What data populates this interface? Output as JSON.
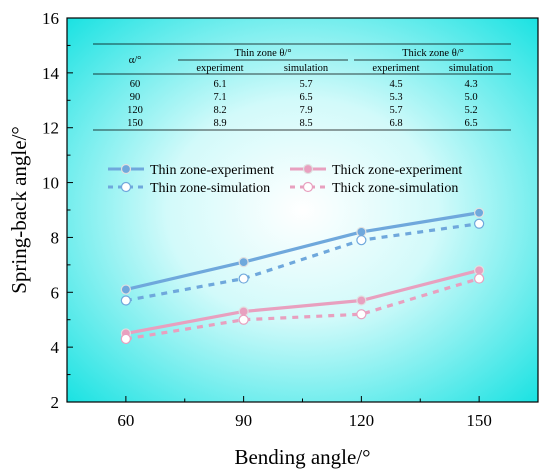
{
  "chart_data": {
    "type": "line",
    "xlabel": "Bending angle/°",
    "ylabel": "Spring-back angle/°",
    "x": [
      60,
      90,
      120,
      150
    ],
    "xticks": [
      "60",
      "90",
      "120",
      "150"
    ],
    "yticks": [
      "2",
      "4",
      "6",
      "8",
      "10",
      "12",
      "14",
      "16"
    ],
    "xlim": [
      45,
      165
    ],
    "ylim": [
      2,
      16
    ],
    "background": "cyan radial gradient",
    "legend_position": "center",
    "series": [
      {
        "name": "Thin zone-experiment",
        "values": [
          6.1,
          7.1,
          8.2,
          8.9
        ],
        "color": "#6fa8dc",
        "style": "solid",
        "marker": "filled-circle"
      },
      {
        "name": "Thin zone-simulation",
        "values": [
          5.7,
          6.5,
          7.9,
          8.5
        ],
        "color": "#6fa8dc",
        "style": "dashed",
        "marker": "open-circle"
      },
      {
        "name": "Thick zone-experiment",
        "values": [
          4.5,
          5.3,
          5.7,
          6.8
        ],
        "color": "#e8a0bf",
        "style": "solid",
        "marker": "filled-circle"
      },
      {
        "name": "Thick zone-simulation",
        "values": [
          4.3,
          5.0,
          5.2,
          6.5
        ],
        "color": "#e8a0bf",
        "style": "dashed",
        "marker": "open-circle"
      }
    ],
    "table": {
      "corner_header": "α/°",
      "group_headers": [
        "Thin zone θ/°",
        "Thick zone θ/°"
      ],
      "sub_headers": [
        "experiment",
        "simulation",
        "experiment",
        "simulation"
      ],
      "rows": [
        [
          "60",
          "6.1",
          "5.7",
          "4.5",
          "4.3"
        ],
        [
          "90",
          "7.1",
          "6.5",
          "5.3",
          "5.0"
        ],
        [
          "120",
          "8.2",
          "7.9",
          "5.7",
          "5.2"
        ],
        [
          "150",
          "8.9",
          "8.5",
          "6.8",
          "6.5"
        ]
      ]
    }
  }
}
